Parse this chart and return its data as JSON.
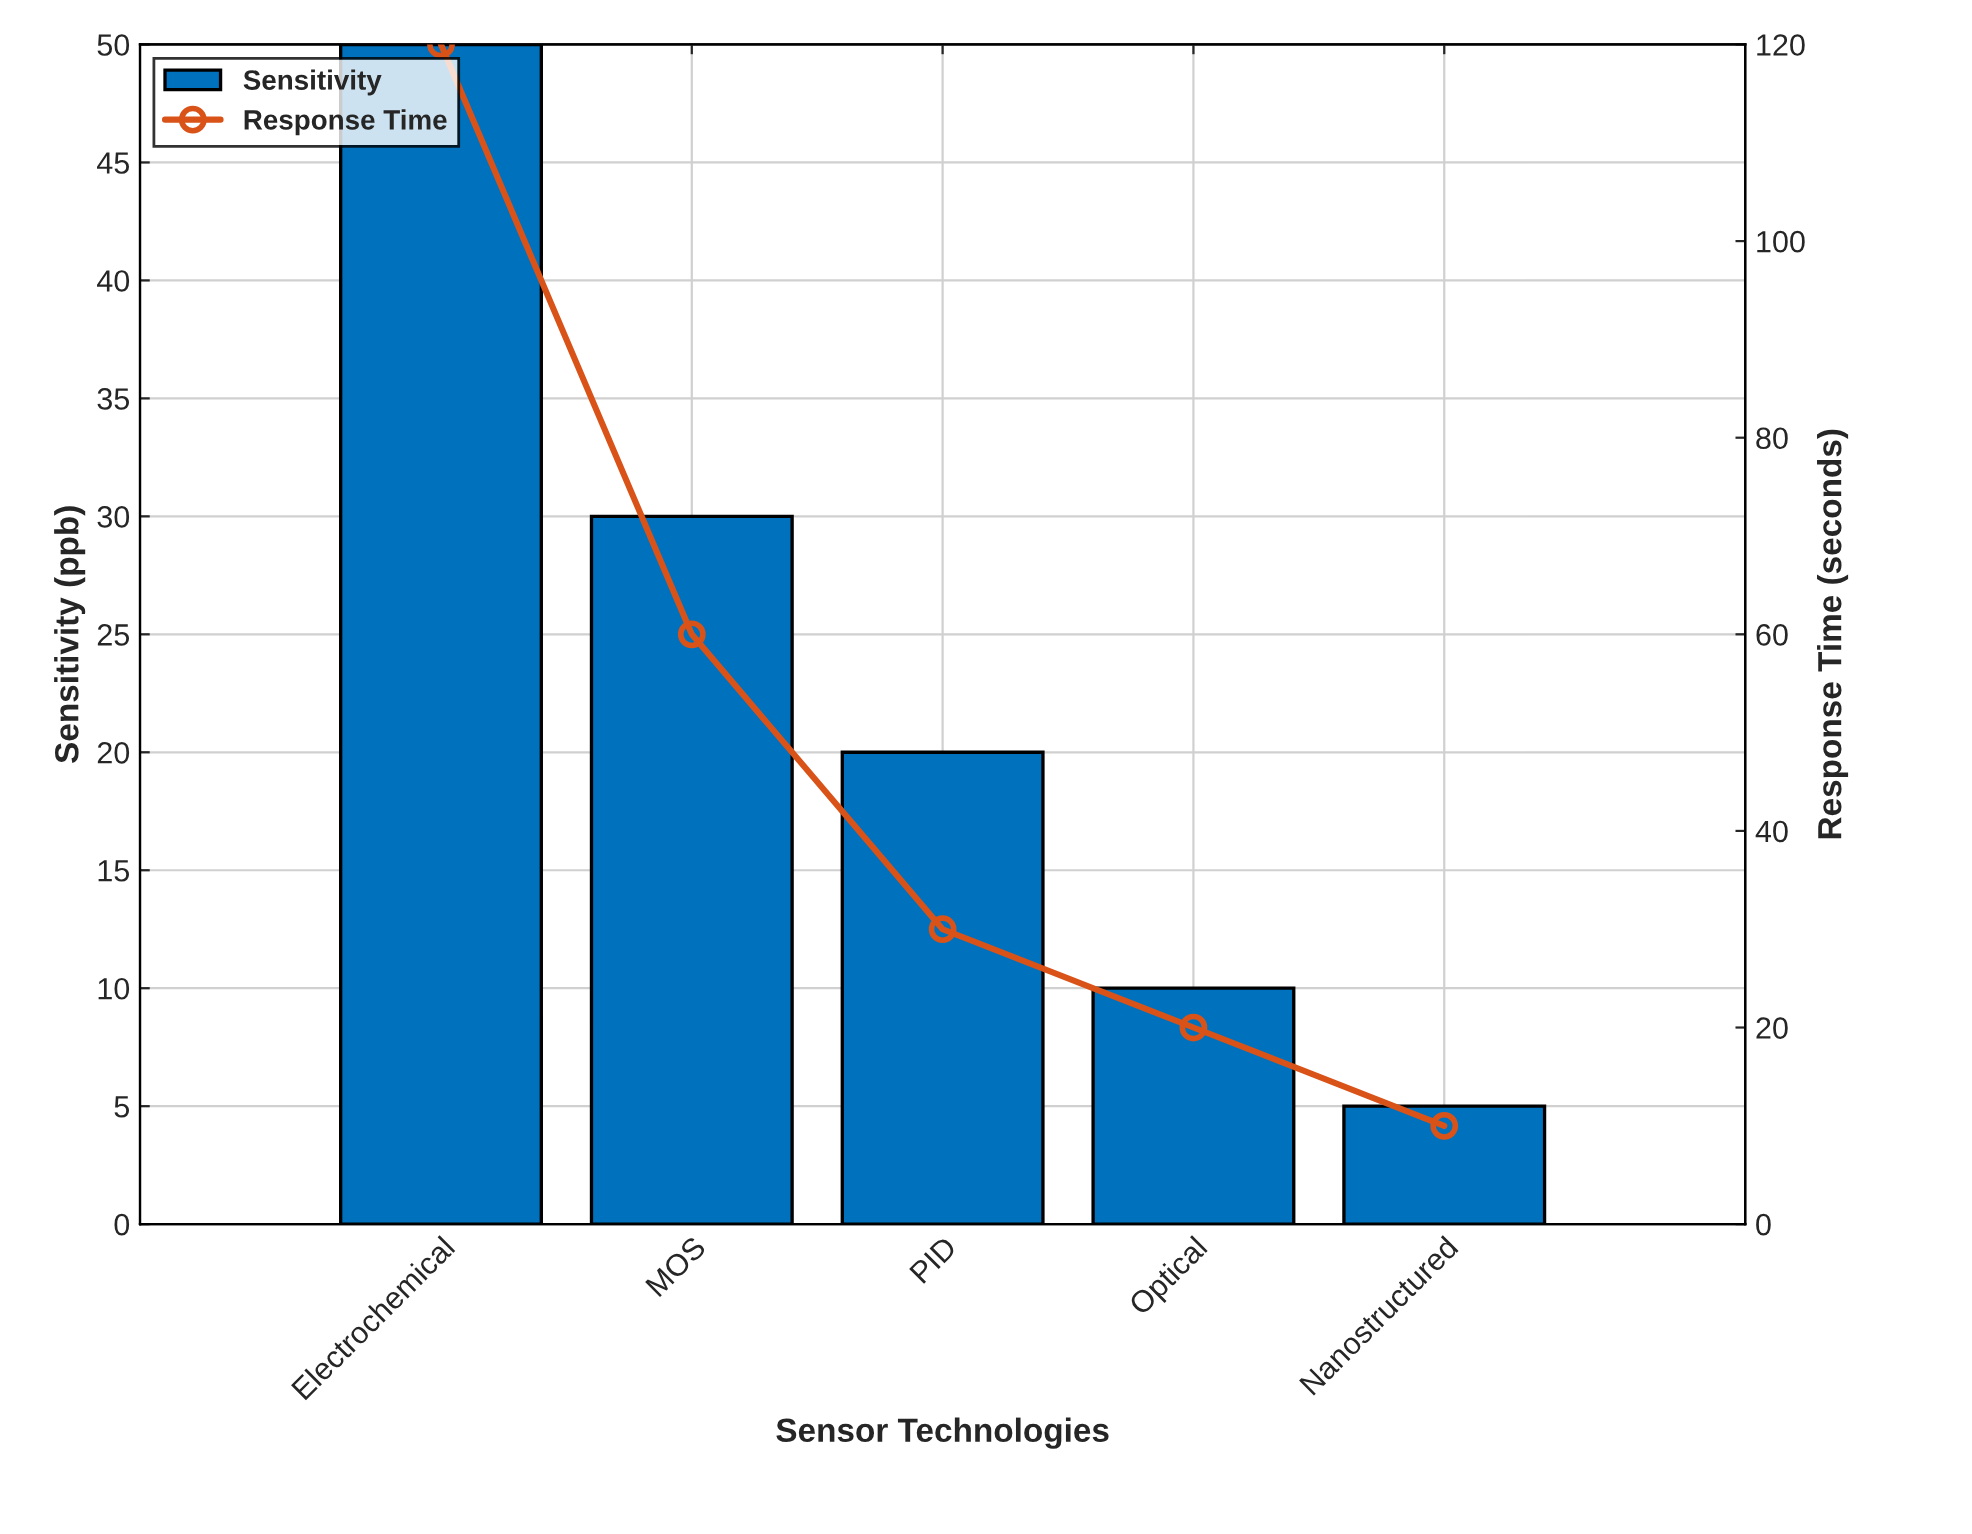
{
  "chart_data": {
    "type": "bar",
    "xlabel": "Sensor Technologies",
    "ylabel": "Sensitivity (ppb)",
    "y2label": "Response Time (seconds)",
    "categories": [
      "Electrochemical",
      "MOS",
      "PID",
      "Optical",
      "Nanostructured"
    ],
    "series": [
      {
        "name": "Sensitivity",
        "color": "#0072bd",
        "values": [
          50,
          30,
          20,
          10,
          5
        ]
      },
      {
        "name": "Response Time",
        "type": "line",
        "axis": "y2",
        "color": "#d95319",
        "marker": "circle",
        "values": [
          120,
          60,
          30,
          20,
          10
        ]
      }
    ],
    "ylim": [
      0,
      50
    ],
    "yticks": [
      0,
      5,
      10,
      15,
      20,
      25,
      30,
      35,
      40,
      45,
      50
    ],
    "y2lim": [
      0,
      120
    ],
    "y2ticks": [
      0,
      20,
      40,
      60,
      80,
      100,
      120
    ],
    "grid": true,
    "legend": "top left"
  }
}
